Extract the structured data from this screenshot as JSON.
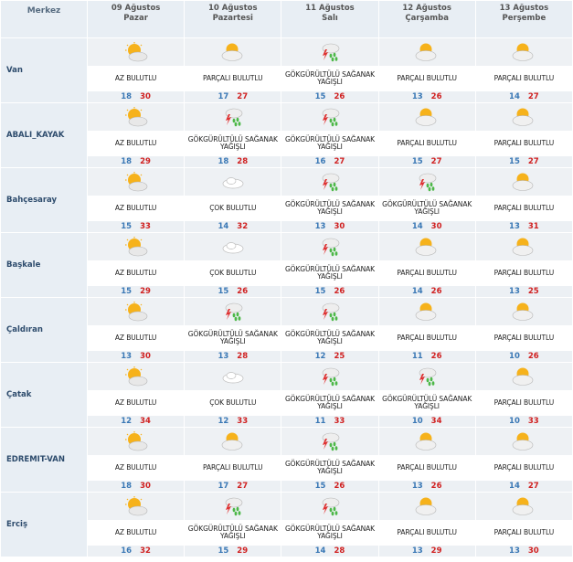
{
  "header": {
    "city_label": "Merkez"
  },
  "days": [
    {
      "date": "09 Ağustos",
      "weekday": "Pazar"
    },
    {
      "date": "10 Ağustos",
      "weekday": "Pazartesi"
    },
    {
      "date": "11 Ağustos",
      "weekday": "Salı"
    },
    {
      "date": "12 Ağustos",
      "weekday": "Çarşamba"
    },
    {
      "date": "13 Ağustos",
      "weekday": "Perşembe"
    }
  ],
  "rows": [
    {
      "city": "Van",
      "forecast": [
        {
          "icon": "sun-cloud-icon",
          "desc": "AZ BULUTLU",
          "low": "18",
          "high": "30"
        },
        {
          "icon": "partly-cloudy-icon",
          "desc": "PARÇALI BULUTLU",
          "low": "17",
          "high": "27"
        },
        {
          "icon": "thunderstorm-icon",
          "desc": "GÖKGÜRÜLTÜLÜ SAĞANAK YAĞIŞLI",
          "low": "15",
          "high": "26"
        },
        {
          "icon": "partly-cloudy-icon",
          "desc": "PARÇALI BULUTLU",
          "low": "13",
          "high": "26"
        },
        {
          "icon": "partly-cloudy-icon",
          "desc": "PARÇALI BULUTLU",
          "low": "14",
          "high": "27"
        }
      ]
    },
    {
      "city": "ABALI_KAYAK",
      "forecast": [
        {
          "icon": "sun-cloud-icon",
          "desc": "AZ BULUTLU",
          "low": "18",
          "high": "29"
        },
        {
          "icon": "thunderstorm-icon",
          "desc": "GÖKGÜRÜLTÜLÜ SAĞANAK YAĞIŞLI",
          "low": "18",
          "high": "28"
        },
        {
          "icon": "thunderstorm-icon",
          "desc": "GÖKGÜRÜLTÜLÜ SAĞANAK YAĞIŞLI",
          "low": "16",
          "high": "27"
        },
        {
          "icon": "partly-cloudy-icon",
          "desc": "PARÇALI BULUTLU",
          "low": "15",
          "high": "27"
        },
        {
          "icon": "partly-cloudy-icon",
          "desc": "PARÇALI BULUTLU",
          "low": "15",
          "high": "27"
        }
      ]
    },
    {
      "city": "Bahçesaray",
      "forecast": [
        {
          "icon": "sun-cloud-icon",
          "desc": "AZ BULUTLU",
          "low": "15",
          "high": "33"
        },
        {
          "icon": "cloudy-icon",
          "desc": "ÇOK BULUTLU",
          "low": "14",
          "high": "32"
        },
        {
          "icon": "thunderstorm-icon",
          "desc": "GÖKGÜRÜLTÜLÜ SAĞANAK YAĞIŞLI",
          "low": "13",
          "high": "30"
        },
        {
          "icon": "thunderstorm-icon",
          "desc": "GÖKGÜRÜLTÜLÜ SAĞANAK YAĞIŞLI",
          "low": "14",
          "high": "30"
        },
        {
          "icon": "partly-cloudy-icon",
          "desc": "PARÇALI BULUTLU",
          "low": "13",
          "high": "31"
        }
      ]
    },
    {
      "city": "Başkale",
      "forecast": [
        {
          "icon": "sun-cloud-icon",
          "desc": "AZ BULUTLU",
          "low": "15",
          "high": "29"
        },
        {
          "icon": "cloudy-icon",
          "desc": "ÇOK BULUTLU",
          "low": "15",
          "high": "26"
        },
        {
          "icon": "thunderstorm-icon",
          "desc": "GÖKGÜRÜLTÜLÜ SAĞANAK YAĞIŞLI",
          "low": "15",
          "high": "26"
        },
        {
          "icon": "partly-cloudy-icon",
          "desc": "PARÇALI BULUTLU",
          "low": "14",
          "high": "26"
        },
        {
          "icon": "partly-cloudy-icon",
          "desc": "PARÇALI BULUTLU",
          "low": "13",
          "high": "25"
        }
      ]
    },
    {
      "city": "Çaldıran",
      "forecast": [
        {
          "icon": "sun-cloud-icon",
          "desc": "AZ BULUTLU",
          "low": "13",
          "high": "30"
        },
        {
          "icon": "thunderstorm-icon",
          "desc": "GÖKGÜRÜLTÜLÜ SAĞANAK YAĞIŞLI",
          "low": "13",
          "high": "28"
        },
        {
          "icon": "thunderstorm-icon",
          "desc": "GÖKGÜRÜLTÜLÜ SAĞANAK YAĞIŞLI",
          "low": "12",
          "high": "25"
        },
        {
          "icon": "partly-cloudy-icon",
          "desc": "PARÇALI BULUTLU",
          "low": "11",
          "high": "26"
        },
        {
          "icon": "partly-cloudy-icon",
          "desc": "PARÇALI BULUTLU",
          "low": "10",
          "high": "26"
        }
      ]
    },
    {
      "city": "Çatak",
      "forecast": [
        {
          "icon": "sun-cloud-icon",
          "desc": "AZ BULUTLU",
          "low": "12",
          "high": "34"
        },
        {
          "icon": "cloudy-icon",
          "desc": "ÇOK BULUTLU",
          "low": "12",
          "high": "33"
        },
        {
          "icon": "thunderstorm-icon",
          "desc": "GÖKGÜRÜLTÜLÜ SAĞANAK YAĞIŞLI",
          "low": "11",
          "high": "33"
        },
        {
          "icon": "thunderstorm-icon",
          "desc": "GÖKGÜRÜLTÜLÜ SAĞANAK YAĞIŞLI",
          "low": "10",
          "high": "34"
        },
        {
          "icon": "partly-cloudy-icon",
          "desc": "PARÇALI BULUTLU",
          "low": "10",
          "high": "33"
        }
      ]
    },
    {
      "city": "EDREMIT-VAN",
      "forecast": [
        {
          "icon": "sun-cloud-icon",
          "desc": "AZ BULUTLU",
          "low": "18",
          "high": "30"
        },
        {
          "icon": "partly-cloudy-icon",
          "desc": "PARÇALI BULUTLU",
          "low": "17",
          "high": "27"
        },
        {
          "icon": "thunderstorm-icon",
          "desc": "GÖKGÜRÜLTÜLÜ SAĞANAK YAĞIŞLI",
          "low": "15",
          "high": "26"
        },
        {
          "icon": "partly-cloudy-icon",
          "desc": "PARÇALI BULUTLU",
          "low": "13",
          "high": "26"
        },
        {
          "icon": "partly-cloudy-icon",
          "desc": "PARÇALI BULUTLU",
          "low": "14",
          "high": "27"
        }
      ]
    },
    {
      "city": "Erciş",
      "forecast": [
        {
          "icon": "sun-cloud-icon",
          "desc": "AZ BULUTLU",
          "low": "16",
          "high": "32"
        },
        {
          "icon": "thunderstorm-icon",
          "desc": "GÖKGÜRÜLTÜLÜ SAĞANAK YAĞIŞLI",
          "low": "15",
          "high": "29"
        },
        {
          "icon": "thunderstorm-icon",
          "desc": "GÖKGÜRÜLTÜLÜ SAĞANAK YAĞIŞLI",
          "low": "14",
          "high": "28"
        },
        {
          "icon": "partly-cloudy-icon",
          "desc": "PARÇALI BULUTLU",
          "low": "13",
          "high": "29"
        },
        {
          "icon": "partly-cloudy-icon",
          "desc": "PARÇALI BULUTLU",
          "low": "13",
          "high": "30"
        }
      ]
    }
  ]
}
